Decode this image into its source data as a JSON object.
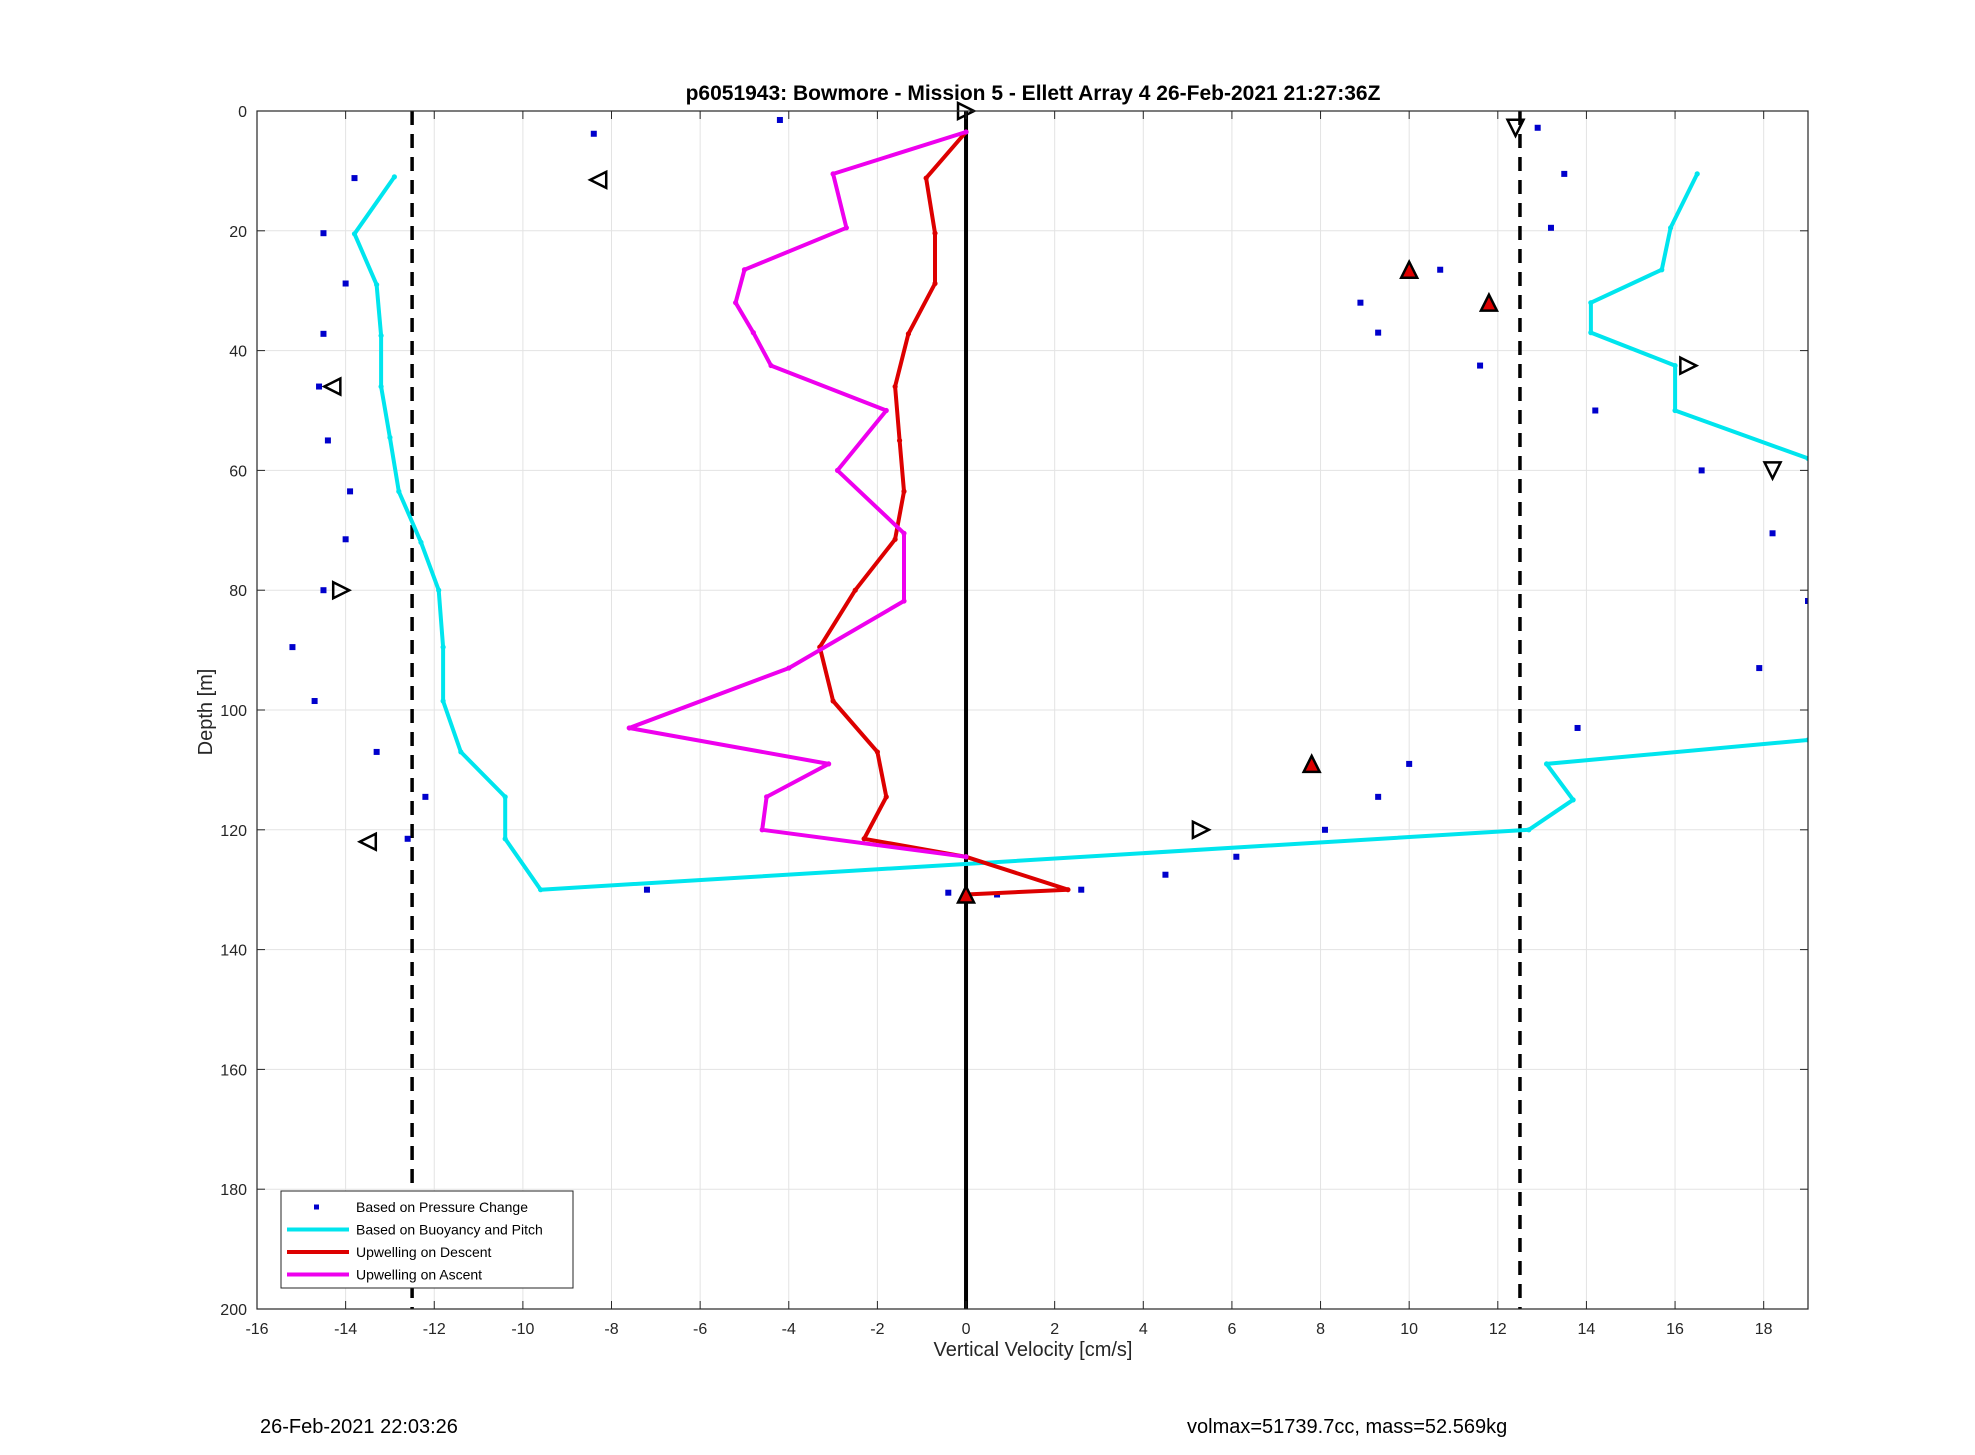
{
  "chart_data": {
    "type": "scatter",
    "title": "p6051943: Bowmore - Mission 5 - Ellett Array 4 26-Feb-2021 21:27:36Z",
    "xlabel": "Vertical Velocity [cm/s]",
    "ylabel": "Depth [m]",
    "xlim": [
      -16,
      19
    ],
    "ylim": [
      0,
      200
    ],
    "y_reversed": true,
    "grid": true,
    "x_ticks": [
      -16,
      -14,
      -12,
      -10,
      -8,
      -6,
      -4,
      -2,
      0,
      2,
      4,
      6,
      8,
      10,
      12,
      14,
      16,
      18
    ],
    "y_ticks": [
      0,
      20,
      40,
      60,
      80,
      100,
      120,
      140,
      160,
      180,
      200
    ],
    "legend_position": "bottom-left",
    "series": [
      {
        "name": "Based on Pressure Change",
        "style": "dots",
        "color": "#0000cc",
        "points": [
          [
            -4.2,
            1.5
          ],
          [
            -8.4,
            3.8
          ],
          [
            12.9,
            2.8
          ],
          [
            -13.8,
            11.2
          ],
          [
            13.5,
            10.5
          ],
          [
            -14.5,
            20.4
          ],
          [
            13.2,
            19.5
          ],
          [
            10.7,
            26.5
          ],
          [
            -14.0,
            28.8
          ],
          [
            8.9,
            32.0
          ],
          [
            -14.5,
            37.2
          ],
          [
            9.3,
            37.0
          ],
          [
            11.6,
            42.5
          ],
          [
            -14.6,
            46.0
          ],
          [
            14.2,
            50.0
          ],
          [
            -14.4,
            55.0
          ],
          [
            16.6,
            60.0
          ],
          [
            -13.9,
            63.5
          ],
          [
            -14.0,
            71.5
          ],
          [
            18.2,
            70.5
          ],
          [
            -14.5,
            80.0
          ],
          [
            19.0,
            81.8
          ],
          [
            -15.2,
            89.5
          ],
          [
            17.9,
            93.0
          ],
          [
            -14.7,
            98.5
          ],
          [
            13.8,
            103.0
          ],
          [
            -13.3,
            107.0
          ],
          [
            10.0,
            109.0
          ],
          [
            -12.2,
            114.5
          ],
          [
            9.3,
            114.5
          ],
          [
            -12.6,
            121.5
          ],
          [
            8.1,
            120.0
          ],
          [
            6.1,
            124.5
          ],
          [
            4.5,
            127.5
          ],
          [
            -7.2,
            130.0
          ],
          [
            2.6,
            130.0
          ],
          [
            -0.4,
            130.5
          ],
          [
            0.7,
            130.8
          ]
        ]
      },
      {
        "name": "Based on Buoyancy and Pitch",
        "style": "line",
        "color": "#00e5ee",
        "points": [
          [
            -12.9,
            11
          ],
          [
            -13.8,
            20.5
          ],
          [
            -13.3,
            29
          ],
          [
            -13.2,
            37.5
          ],
          [
            -13.2,
            46
          ],
          [
            -13.0,
            54.5
          ],
          [
            -12.8,
            63.5
          ],
          [
            -12.3,
            72
          ],
          [
            -11.9,
            80
          ],
          [
            -11.8,
            89.5
          ],
          [
            -11.8,
            98.5
          ],
          [
            -11.4,
            107
          ],
          [
            -10.4,
            114.5
          ],
          [
            -10.4,
            121.5
          ],
          [
            -9.6,
            130
          ],
          [
            12.7,
            120
          ],
          [
            13.7,
            115
          ],
          [
            13.1,
            109
          ],
          [
            19,
            105
          ]
        ],
        "points_right": [
          [
            16.5,
            10.5
          ],
          [
            15.9,
            19.5
          ],
          [
            15.7,
            26.5
          ],
          [
            14.1,
            32
          ],
          [
            14.1,
            37
          ],
          [
            16.0,
            42.5
          ],
          [
            16.0,
            50
          ],
          [
            19,
            58
          ]
        ]
      },
      {
        "name": "Upwelling on Descent",
        "style": "line",
        "color": "#dd0000",
        "points": [
          [
            0.0,
            3.5
          ],
          [
            -0.9,
            11.2
          ],
          [
            -0.7,
            20.4
          ],
          [
            -0.7,
            28.8
          ],
          [
            -1.3,
            37.2
          ],
          [
            -1.6,
            46
          ],
          [
            -1.5,
            55
          ],
          [
            -1.4,
            63.5
          ],
          [
            -1.6,
            71.5
          ],
          [
            -2.5,
            80
          ],
          [
            -3.3,
            89.5
          ],
          [
            -3.0,
            98.5
          ],
          [
            -2.0,
            107
          ],
          [
            -1.8,
            114.5
          ],
          [
            -2.3,
            121.5
          ],
          [
            0.0,
            124.5
          ],
          [
            2.3,
            130
          ],
          [
            0.0,
            130.8
          ]
        ]
      },
      {
        "name": "Upwelling on Ascent",
        "style": "line",
        "color": "#ee00ee",
        "points": [
          [
            0.0,
            3.5
          ],
          [
            -3.0,
            10.5
          ],
          [
            -2.7,
            19.5
          ],
          [
            -5.0,
            26.5
          ],
          [
            -5.2,
            32
          ],
          [
            -4.8,
            37
          ],
          [
            -4.4,
            42.5
          ],
          [
            -1.8,
            50
          ],
          [
            -2.9,
            60
          ],
          [
            -1.4,
            70.5
          ],
          [
            -1.4,
            81.8
          ],
          [
            -4.0,
            93
          ],
          [
            -7.6,
            103
          ],
          [
            -3.1,
            109
          ],
          [
            -4.5,
            114.5
          ],
          [
            -4.6,
            120
          ],
          [
            0.0,
            124.5
          ]
        ]
      }
    ],
    "markers": {
      "triangles_right": [
        [
          0.0,
          0.0
        ],
        [
          -14.1,
          80.0
        ],
        [
          5.3,
          120.0
        ],
        [
          16.3,
          42.5
        ]
      ],
      "triangles_left": [
        [
          -8.3,
          11.5
        ],
        [
          -14.3,
          46.0
        ],
        [
          -13.5,
          122.0
        ]
      ],
      "triangles_down": [
        [
          12.4,
          2.8
        ],
        [
          18.2,
          60.0
        ]
      ],
      "triangles_up_filled": [
        [
          10.0,
          26.5
        ],
        [
          11.8,
          32.0
        ],
        [
          7.8,
          109.0
        ],
        [
          0.0,
          130.8
        ]
      ]
    },
    "reference_lines": {
      "solid_vertical": 0,
      "dashed_vertical": [
        -12.5,
        12.5
      ]
    }
  },
  "footer": {
    "timestamp": "26-Feb-2021 22:03:26",
    "summary": "volmax=51739.7cc, mass=52.569kg"
  }
}
